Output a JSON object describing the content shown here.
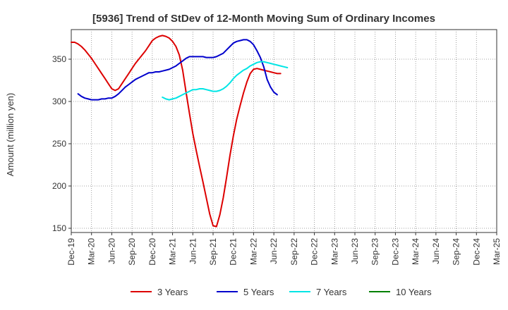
{
  "chart_data": {
    "type": "line",
    "title": "[5936]  Trend of StDev of 12-Month Moving Sum of Ordinary Incomes",
    "xlabel": "",
    "ylabel": "Amount (million yen)",
    "ylim": [
      145,
      385
    ],
    "y_ticks": [
      150,
      200,
      250,
      300,
      350
    ],
    "x_ticks": [
      "Dec-19",
      "Mar-20",
      "Jun-20",
      "Sep-20",
      "Dec-20",
      "Mar-21",
      "Jun-21",
      "Sep-21",
      "Dec-21",
      "Mar-22",
      "Jun-22",
      "Sep-22",
      "Dec-22",
      "Mar-23",
      "Jun-23",
      "Sep-23",
      "Dec-23",
      "Mar-24",
      "Jun-24",
      "Sep-24",
      "Dec-24",
      "Mar-25"
    ],
    "grid": true,
    "legend_position": "bottom",
    "series": [
      {
        "name": "3 Years",
        "color": "#dd0000",
        "start_index": 0,
        "values": [
          370,
          370,
          368,
          365,
          361,
          356,
          351,
          345,
          339,
          333,
          327,
          321,
          315,
          313,
          315,
          321,
          327,
          333,
          339,
          345,
          350,
          355,
          360,
          366,
          372,
          375,
          377,
          378,
          377,
          375,
          371,
          365,
          355,
          337,
          311,
          286,
          262,
          242,
          223,
          205,
          186,
          167,
          153,
          152,
          166,
          186,
          210,
          236,
          259,
          279,
          295,
          310,
          323,
          333,
          338,
          339,
          338,
          337,
          336,
          335,
          334,
          333,
          333
        ]
      },
      {
        "name": "5 Years",
        "color": "#0000cc",
        "start_index": 2,
        "values": [
          309,
          306,
          304,
          303,
          302,
          302,
          302,
          303,
          303,
          304,
          304,
          306,
          309,
          313,
          317,
          320,
          323,
          326,
          328,
          330,
          332,
          334,
          334,
          335,
          335,
          336,
          337,
          338,
          340,
          342,
          345,
          348,
          351,
          353,
          353,
          353,
          353,
          353,
          352,
          352,
          352,
          353,
          355,
          357,
          361,
          365,
          369,
          371,
          372,
          373,
          373,
          371,
          367,
          360,
          352,
          341,
          326,
          317,
          311,
          308
        ]
      },
      {
        "name": "7 Years",
        "color": "#00e5e5",
        "start_index": 27,
        "values": [
          305,
          303,
          302,
          303,
          304,
          306,
          308,
          310,
          312,
          314,
          314,
          315,
          315,
          314,
          313,
          312,
          312,
          313,
          315,
          318,
          322,
          327,
          331,
          334,
          337,
          339,
          342,
          344,
          346,
          347,
          347,
          346,
          345,
          344,
          343,
          342,
          341,
          340
        ]
      },
      {
        "name": "10 Years",
        "color": "#008000",
        "start_index": 0,
        "values": []
      }
    ]
  }
}
